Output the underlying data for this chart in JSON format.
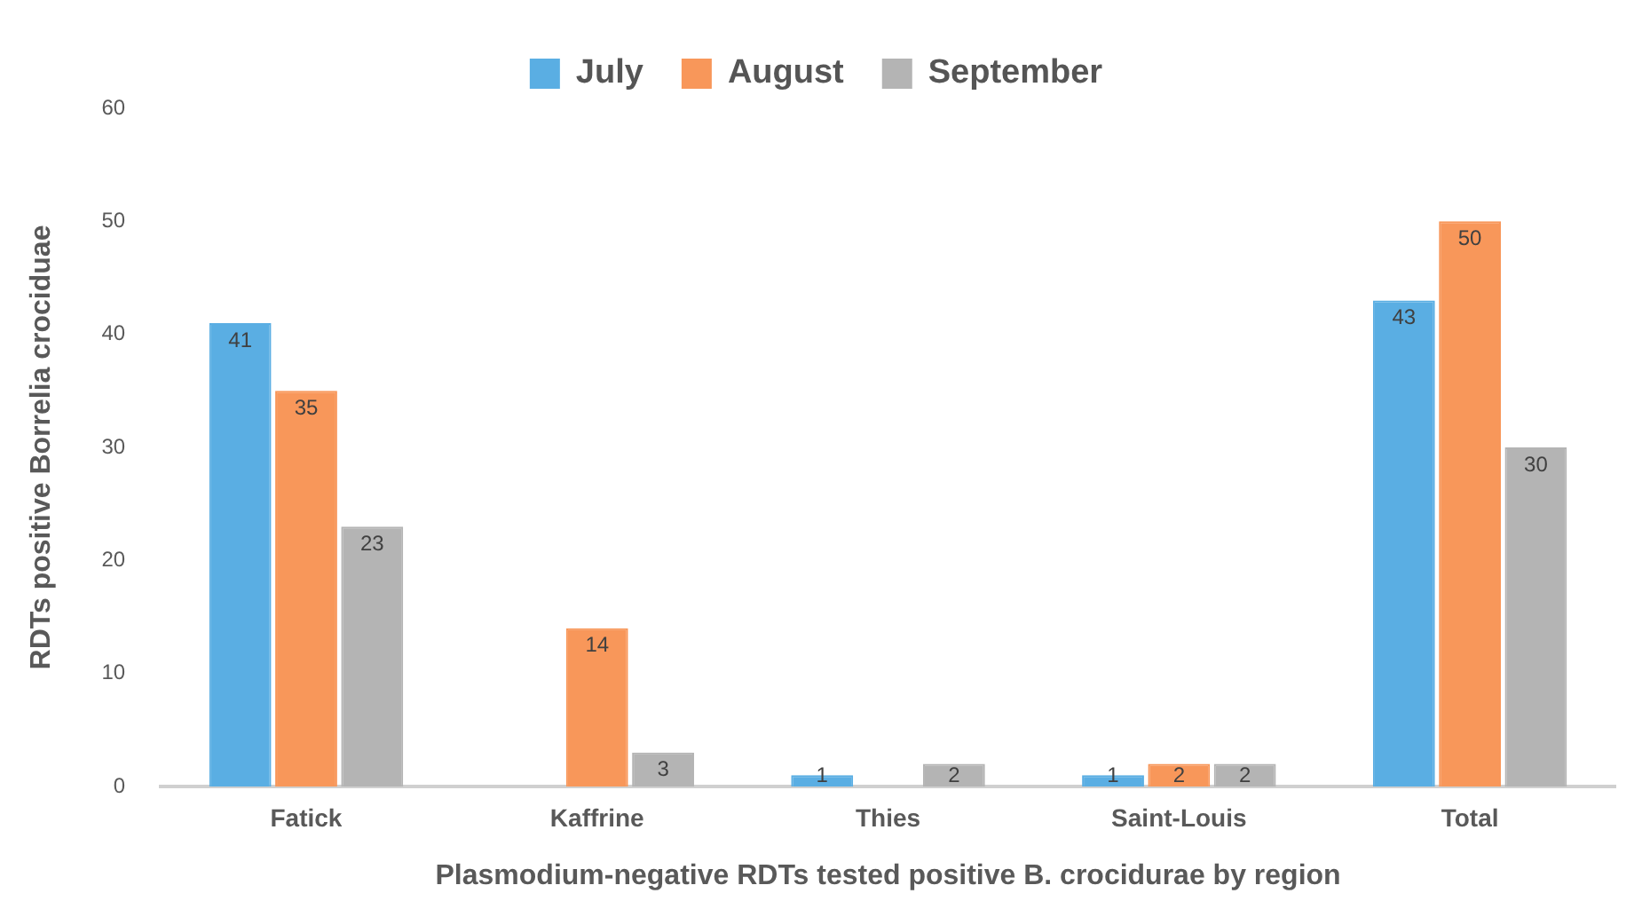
{
  "chart_data": {
    "type": "bar",
    "xlabel": "Plasmodium-negative RDTs tested positive B. crocidurae by region",
    "ylabel": "RDTs positive Borrelia crociduae",
    "categories": [
      "Fatick",
      "Kaffrine",
      "Thies",
      "Saint-Louis",
      "Total"
    ],
    "series": [
      {
        "name": "July",
        "color": "#5aaee3",
        "values": [
          41,
          null,
          1,
          1,
          43
        ]
      },
      {
        "name": "August",
        "color": "#f8975a",
        "values": [
          35,
          14,
          null,
          2,
          50
        ]
      },
      {
        "name": "September",
        "color": "#b4b4b4",
        "values": [
          23,
          3,
          2,
          2,
          30
        ]
      }
    ],
    "ylim": [
      0,
      60
    ],
    "yticks": [
      0,
      10,
      20,
      30,
      40,
      50,
      60
    ],
    "grid": false,
    "legend": "top",
    "data_labels": true
  }
}
